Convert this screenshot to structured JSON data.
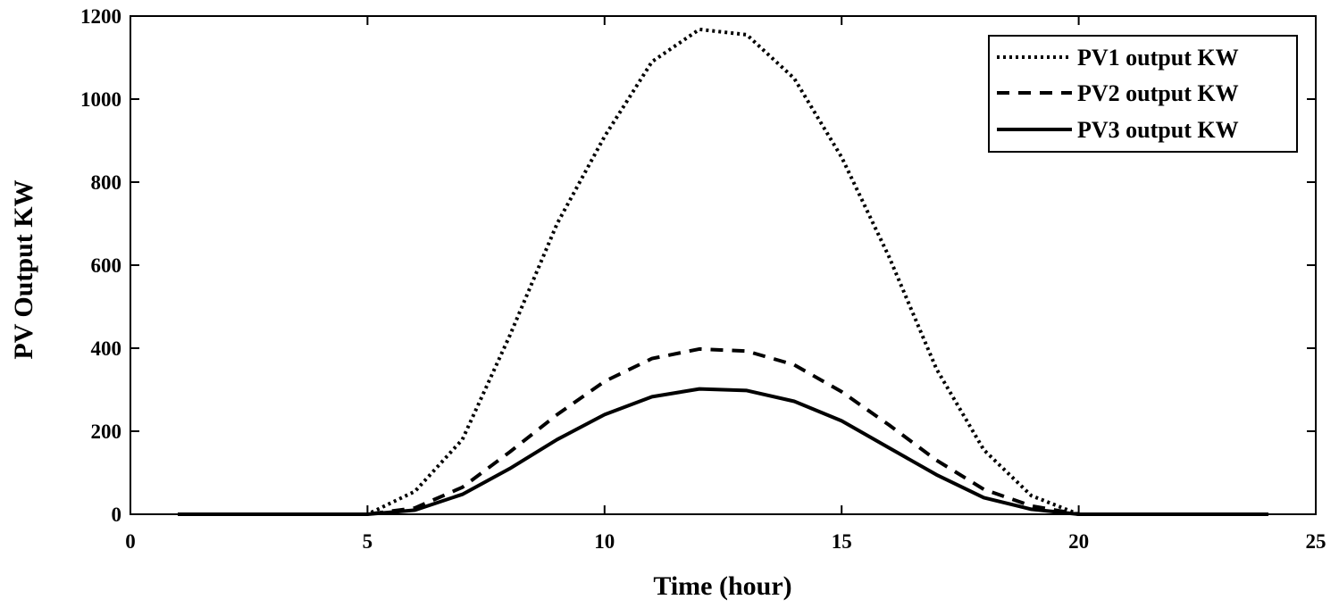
{
  "chart_data": {
    "type": "line",
    "title": "",
    "xlabel": "Time (hour)",
    "ylabel": "PV Output KW",
    "xlim": [
      0,
      25
    ],
    "ylim": [
      0,
      1200
    ],
    "xticks": [
      0,
      5,
      10,
      15,
      20,
      25
    ],
    "yticks": [
      0,
      200,
      400,
      600,
      800,
      1000,
      1200
    ],
    "xtick_labels": [
      "0",
      "5",
      "10",
      "15",
      "20",
      "25"
    ],
    "ytick_labels": [
      "0",
      "200",
      "400",
      "600",
      "800",
      "1000",
      "1200"
    ],
    "grid": false,
    "legend_position": "top-right",
    "x": [
      1,
      2,
      3,
      4,
      5,
      6,
      7,
      8,
      9,
      10,
      11,
      12,
      13,
      14,
      15,
      16,
      17,
      18,
      19,
      20,
      21,
      22,
      23,
      24
    ],
    "series": [
      {
        "name": "PV1 output KW",
        "style": "dotted",
        "color": "#000000",
        "values": [
          0,
          0,
          0,
          0,
          0,
          55,
          180,
          430,
          700,
          910,
          1090,
          1168,
          1155,
          1050,
          860,
          620,
          350,
          155,
          45,
          0,
          0,
          0,
          0,
          0
        ]
      },
      {
        "name": "PV2 output KW",
        "style": "dashed",
        "color": "#000000",
        "values": [
          0,
          0,
          0,
          0,
          0,
          15,
          65,
          150,
          240,
          320,
          375,
          398,
          393,
          360,
          295,
          215,
          130,
          60,
          20,
          0,
          0,
          0,
          0,
          0
        ]
      },
      {
        "name": "PV3 output KW",
        "style": "solid",
        "color": "#000000",
        "values": [
          0,
          0,
          0,
          0,
          0,
          10,
          48,
          110,
          180,
          240,
          283,
          302,
          298,
          272,
          225,
          160,
          95,
          40,
          12,
          0,
          0,
          0,
          0,
          0
        ]
      }
    ]
  }
}
